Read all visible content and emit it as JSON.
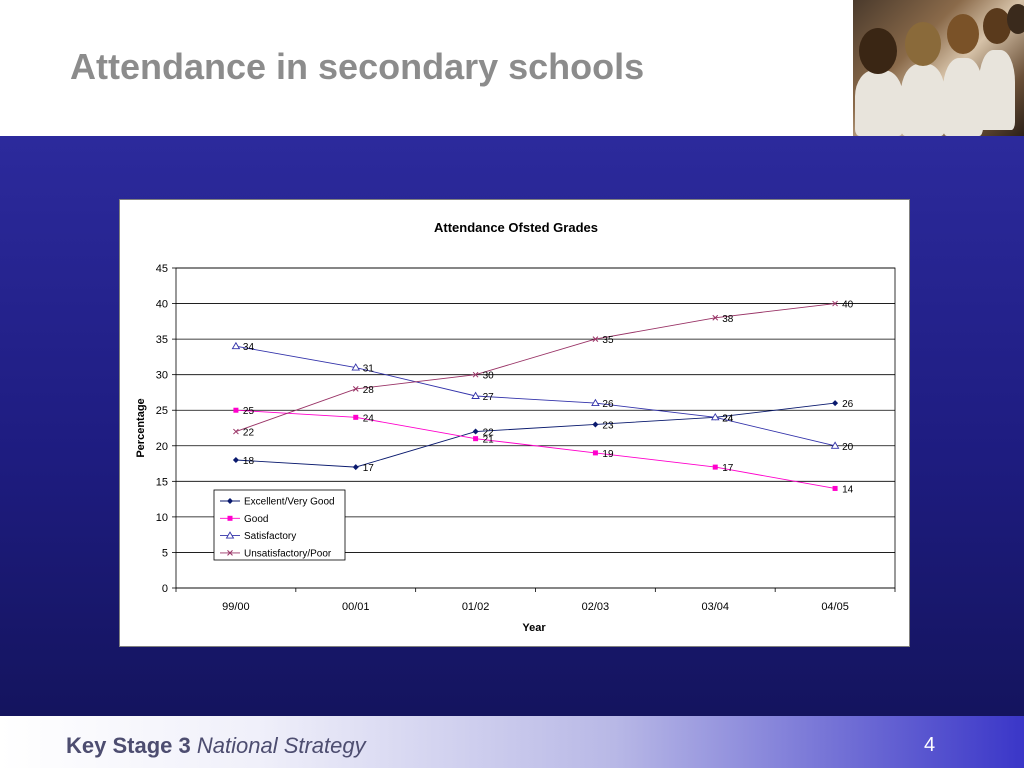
{
  "slide": {
    "title": "Attendance in secondary schools",
    "footer_bold": "Key Stage 3",
    "footer_italic": "National Strategy",
    "page_number": "4"
  },
  "chart_data": {
    "type": "line",
    "title": "Attendance Ofsted Grades",
    "xlabel": "Year",
    "ylabel": "Percentage",
    "categories": [
      "99/00",
      "00/01",
      "01/02",
      "02/03",
      "03/04",
      "04/05"
    ],
    "ylim": [
      0,
      45
    ],
    "yticks": [
      0,
      5,
      10,
      15,
      20,
      25,
      30,
      35,
      40,
      45
    ],
    "grid": true,
    "legend_position": "bottom-left",
    "series": [
      {
        "name": "Excellent/Very Good",
        "values": [
          18,
          17,
          22,
          23,
          24,
          26
        ],
        "color": "#0a1a6e",
        "marker": "diamond"
      },
      {
        "name": "Good",
        "values": [
          25,
          24,
          21,
          19,
          17,
          14
        ],
        "color": "#ff00cc",
        "marker": "square"
      },
      {
        "name": "Satisfactory",
        "values": [
          34,
          31,
          27,
          26,
          24,
          20
        ],
        "color": "#3333aa",
        "marker": "triangle"
      },
      {
        "name": "Unsatisfactory/Poor",
        "values": [
          22,
          28,
          30,
          35,
          38,
          40
        ],
        "color": "#993366",
        "marker": "x"
      }
    ]
  }
}
